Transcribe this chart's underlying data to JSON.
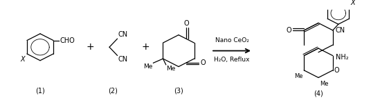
{
  "figsize": [
    5.49,
    1.42
  ],
  "dpi": 100,
  "bg": "#ffffff",
  "fg": "#000000",
  "label1": "(1)",
  "label2": "(2)",
  "label3": "(3)",
  "label4": "(4)",
  "cond1": "Nano CeO₂",
  "cond2": "H₂O, Reflux",
  "cho": "CHO",
  "cn1": "CN",
  "cn2": "CN",
  "o1": "O",
  "o2": "O",
  "cn_prod": "CN",
  "nh2": "NH₂",
  "o_ring": "O",
  "x1": "X",
  "x2": "X",
  "plus": "+",
  "o_prod": "O",
  "me1": "Me",
  "me2": "Me"
}
